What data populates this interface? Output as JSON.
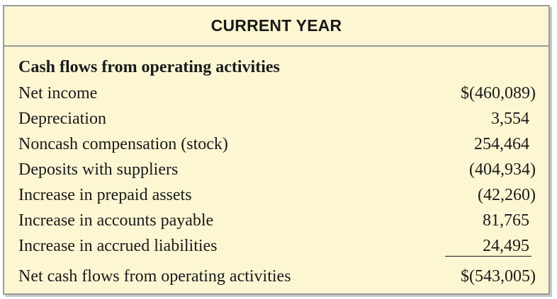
{
  "header": {
    "title": "CURRENT YEAR"
  },
  "section": {
    "title": "Cash flows from operating activities"
  },
  "rows": [
    {
      "label": "Net income",
      "value": "$(460,089)"
    },
    {
      "label": "Depreciation",
      "value": "3,554"
    },
    {
      "label": "Noncash compensation (stock)",
      "value": "254,464"
    },
    {
      "label": "Deposits with suppliers",
      "value": "(404,934)"
    },
    {
      "label": "Increase in prepaid assets",
      "value": "(42,260)"
    },
    {
      "label": "Increase in accounts payable",
      "value": "81,765"
    },
    {
      "label": "Increase in accrued liabilities",
      "value": "24,495"
    }
  ],
  "total": {
    "label": "Net cash flows from operating activities",
    "value": "$(543,005)"
  },
  "colors": {
    "panel_background": "#fdf6d3",
    "border": "#9a9a9a",
    "text": "#1a1a1a"
  }
}
